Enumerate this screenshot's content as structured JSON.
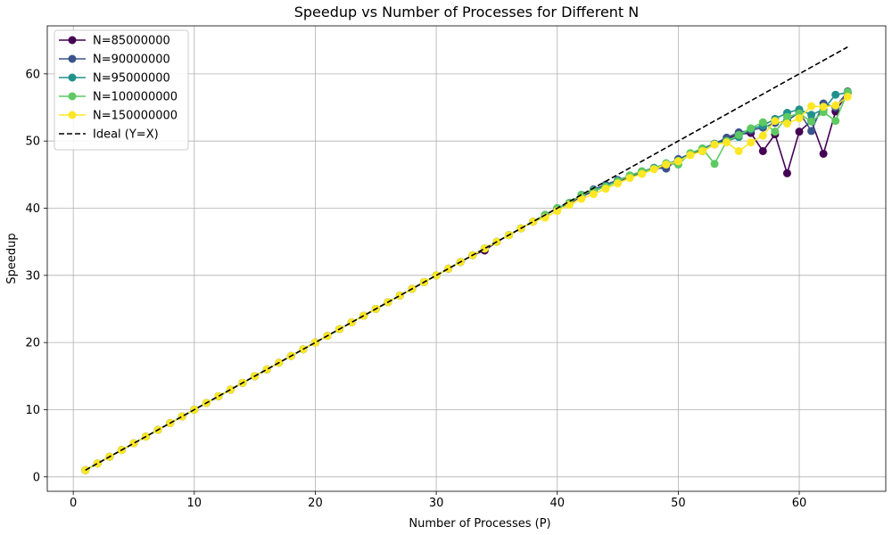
{
  "chart_data": {
    "type": "line",
    "title": "Speedup vs Number of Processes for Different N",
    "xlabel": "Number of Processes (P)",
    "ylabel": "Speedup",
    "xlim": [
      -2.15,
      67.15
    ],
    "ylim": [
      -2.15,
      67.15
    ],
    "xticks": [
      0,
      10,
      20,
      30,
      40,
      50,
      60
    ],
    "yticks": [
      0,
      10,
      20,
      30,
      40,
      50,
      60
    ],
    "grid": true,
    "legend_position": "top-left",
    "x": [
      1,
      2,
      3,
      4,
      5,
      6,
      7,
      8,
      9,
      10,
      11,
      12,
      13,
      14,
      15,
      16,
      17,
      18,
      19,
      20,
      21,
      22,
      23,
      24,
      25,
      26,
      27,
      28,
      29,
      30,
      31,
      32,
      33,
      34,
      35,
      36,
      37,
      38,
      39,
      40,
      41,
      42,
      43,
      44,
      45,
      46,
      47,
      48,
      49,
      50,
      51,
      52,
      53,
      54,
      55,
      56,
      57,
      58,
      59,
      60,
      61,
      62,
      63,
      64
    ],
    "series": [
      {
        "name": "N=85000000",
        "color": "#440154",
        "values": [
          1,
          2,
          3,
          4,
          5,
          6,
          7,
          8,
          9,
          10,
          11,
          12,
          13,
          14,
          15,
          16,
          17,
          18,
          19,
          20,
          21,
          22,
          23,
          24,
          25,
          26,
          27,
          28,
          29,
          30,
          31,
          32,
          33,
          33.7,
          35,
          36,
          37,
          38,
          39,
          40,
          40.7,
          41.8,
          42.5,
          43.3,
          44,
          44.6,
          45.3,
          45.9,
          46.3,
          47.3,
          48,
          48.5,
          49.5,
          50.3,
          51,
          51.2,
          48.5,
          51,
          45.2,
          51.4,
          53,
          48.1,
          54.4,
          57.2
        ]
      },
      {
        "name": "N=90000000",
        "color": "#3b528b",
        "values": [
          1,
          2,
          3,
          4,
          5,
          6,
          7,
          8,
          9,
          10,
          11,
          12,
          13,
          14,
          15,
          16,
          17,
          18,
          19,
          20,
          21,
          22,
          23,
          24,
          25,
          26,
          27,
          28,
          29,
          30,
          31,
          32,
          33,
          34,
          35,
          36,
          37,
          38,
          39,
          40,
          40.8,
          42,
          42.8,
          43.5,
          44.2,
          44.8,
          45.5,
          46,
          45.9,
          47.3,
          48.1,
          48.8,
          49.6,
          50.5,
          51.3,
          51.6,
          52,
          52.7,
          53,
          54.3,
          51.5,
          55.6,
          55,
          57.4
        ]
      },
      {
        "name": "N=95000000",
        "color": "#21918c",
        "values": [
          1,
          2,
          3,
          4,
          5,
          6,
          7,
          8,
          9,
          10,
          11,
          12,
          13,
          14,
          15,
          16,
          17,
          18,
          19,
          20,
          21,
          22,
          23,
          24,
          25,
          26,
          27,
          28,
          29,
          30,
          31,
          32,
          33,
          34,
          35,
          36,
          37,
          38,
          39,
          40,
          40.8,
          42,
          42.7,
          43.3,
          44.1,
          44.8,
          45.3,
          46,
          46.6,
          47.1,
          48.1,
          48.9,
          49.6,
          50,
          50.6,
          51.8,
          52.3,
          53.3,
          54.2,
          54.7,
          53.9,
          54.7,
          56.9,
          57.2
        ]
      },
      {
        "name": "N=100000000",
        "color": "#5ec962",
        "values": [
          1,
          2,
          3,
          4,
          5,
          6,
          7,
          8,
          9,
          10,
          11,
          12,
          13,
          14,
          15,
          16,
          17,
          18,
          19,
          20,
          21,
          22,
          23,
          24,
          25,
          26,
          27,
          28,
          29,
          30,
          31,
          32,
          33,
          34,
          35,
          36,
          37,
          38,
          39,
          40,
          40.8,
          42,
          42.6,
          43.2,
          44,
          44.9,
          45.5,
          45.9,
          46.7,
          46.5,
          48.2,
          48.9,
          46.6,
          50,
          50.9,
          51.9,
          52.8,
          51.4,
          53.6,
          54.1,
          52.9,
          54.3,
          53,
          57.3
        ]
      },
      {
        "name": "N=150000000",
        "color": "#fde725",
        "values": [
          1,
          2,
          3,
          4,
          5,
          6,
          7,
          8,
          9,
          10,
          11,
          12,
          13,
          14,
          15,
          16,
          17,
          18,
          19,
          20,
          21,
          22,
          23,
          24,
          25,
          26,
          27,
          28,
          29,
          30,
          31,
          32,
          33,
          34,
          35,
          36,
          37,
          38,
          38.6,
          39.6,
          40.5,
          41.4,
          42.1,
          42.9,
          43.7,
          44.5,
          45.1,
          45.8,
          46.5,
          47,
          47.9,
          48.5,
          49.5,
          49.8,
          48.5,
          49.8,
          50.8,
          53,
          52.6,
          53.4,
          55.2,
          55.1,
          55.3,
          56.6
        ]
      },
      {
        "name": "Ideal (Y=X)",
        "color": "#000000",
        "dashed": true,
        "values": [
          1,
          64
        ],
        "x": [
          1,
          64
        ]
      }
    ]
  }
}
